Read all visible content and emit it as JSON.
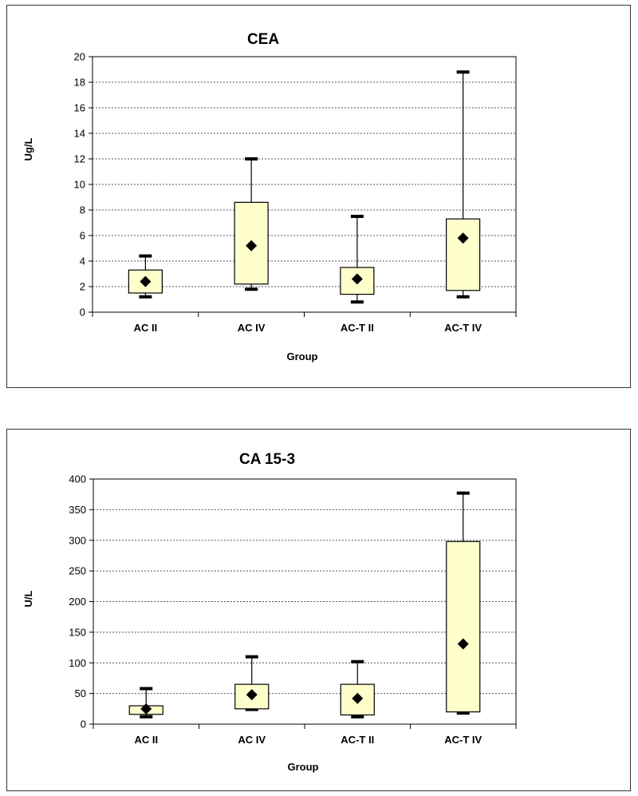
{
  "chart_data": [
    {
      "type": "box",
      "title": "CEA",
      "xlabel": "Group",
      "ylabel": "Ug/L",
      "ylim": [
        0,
        20
      ],
      "yticks": [
        0,
        2,
        4,
        6,
        8,
        10,
        12,
        14,
        16,
        18,
        20
      ],
      "grid": true,
      "categories": [
        "AC II",
        "AC IV",
        "AC-T II",
        "AC-T IV"
      ],
      "boxes": [
        {
          "min": 1.2,
          "q1": 1.5,
          "q3": 3.3,
          "max": 4.4,
          "mean": 2.4
        },
        {
          "min": 1.8,
          "q1": 2.2,
          "q3": 8.6,
          "max": 12.0,
          "mean": 5.2
        },
        {
          "min": 0.8,
          "q1": 1.4,
          "q3": 3.5,
          "max": 7.5,
          "mean": 2.6
        },
        {
          "min": 1.2,
          "q1": 1.7,
          "q3": 7.3,
          "max": 18.8,
          "mean": 5.8
        }
      ],
      "colors": {
        "box_fill": "#ffffcc",
        "stroke": "#000000",
        "grid": "#555555"
      }
    },
    {
      "type": "box",
      "title": "CA 15-3",
      "xlabel": "Group",
      "ylabel": "U/L",
      "ylim": [
        0,
        400
      ],
      "yticks": [
        0,
        50,
        100,
        150,
        200,
        250,
        300,
        350,
        400
      ],
      "grid": true,
      "categories": [
        "AC II",
        "AC IV",
        "AC-T II",
        "AC-T IV"
      ],
      "boxes": [
        {
          "min": 12,
          "q1": 16,
          "q3": 30,
          "max": 58,
          "mean": 25
        },
        {
          "min": 24,
          "q1": 25,
          "q3": 65,
          "max": 110,
          "mean": 48
        },
        {
          "min": 12,
          "q1": 15,
          "q3": 65,
          "max": 102,
          "mean": 42
        },
        {
          "min": 18,
          "q1": 20,
          "q3": 298,
          "max": 377,
          "mean": 131
        }
      ],
      "colors": {
        "box_fill": "#ffffcc",
        "stroke": "#000000",
        "grid": "#555555"
      }
    }
  ]
}
